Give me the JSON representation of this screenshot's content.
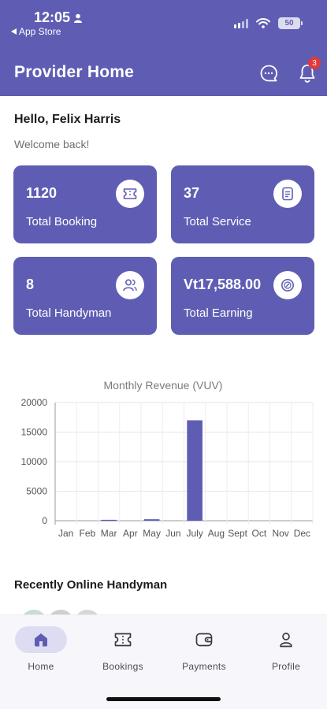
{
  "status": {
    "time": "12:05",
    "back_label": "App Store",
    "battery": "50"
  },
  "header": {
    "title": "Provider Home",
    "notification_count": "3"
  },
  "greeting": {
    "hello": "Hello, Felix Harris",
    "welcome": "Welcome back!"
  },
  "cards": [
    {
      "value": "1120",
      "label": "Total Booking",
      "icon": "ticket-icon"
    },
    {
      "value": "37",
      "label": "Total Service",
      "icon": "document-icon"
    },
    {
      "value": "8",
      "label": "Total Handyman",
      "icon": "users-icon"
    },
    {
      "value": "Vt17,588.00",
      "label": "Total Earning",
      "icon": "coin-icon"
    }
  ],
  "chart_data": {
    "type": "bar",
    "title": "Monthly Revenue (VUV)",
    "categories": [
      "Jan",
      "Feb",
      "Mar",
      "Apr",
      "May",
      "Jun",
      "July",
      "Aug",
      "Sept",
      "Oct",
      "Nov",
      "Dec"
    ],
    "values": [
      0,
      0,
      150,
      0,
      250,
      0,
      17000,
      0,
      0,
      0,
      0,
      0
    ],
    "ylim": [
      0,
      20000
    ],
    "yticks": [
      "0",
      "5000",
      "10000",
      "15000",
      "20000"
    ],
    "grid": true,
    "color": "#5f5db3"
  },
  "online": {
    "title": "Recently Online Handyman"
  },
  "nav": [
    {
      "label": "Home",
      "icon": "home-icon",
      "active": true
    },
    {
      "label": "Bookings",
      "icon": "ticket-icon"
    },
    {
      "label": "Payments",
      "icon": "wallet-icon"
    },
    {
      "label": "Profile",
      "icon": "person-icon"
    }
  ]
}
